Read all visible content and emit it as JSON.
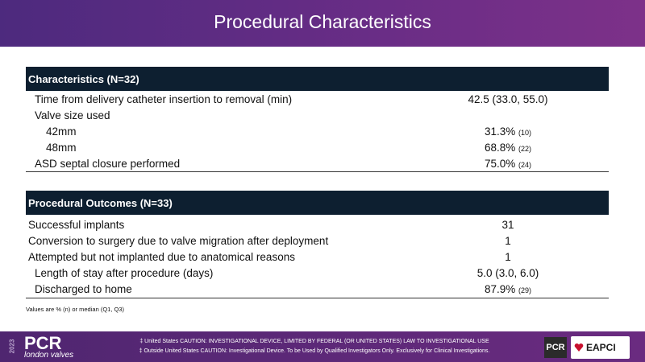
{
  "header": {
    "title": "Procedural Characteristics"
  },
  "tables": [
    {
      "heading": "Characteristics (N=32)",
      "rows": [
        {
          "label": "Time from delivery catheter insertion to removal (min)",
          "value": "42.5 (33.0, 55.0)"
        },
        {
          "label": "Valve size used"
        },
        {
          "label": "42mm",
          "value": "31.3%",
          "count": "(10)"
        },
        {
          "label": "48mm",
          "value": "68.8%",
          "count": "(22)"
        },
        {
          "label": "ASD septal closure performed",
          "value": "75.0%",
          "count": "(24)"
        }
      ]
    },
    {
      "heading": "Procedural Outcomes (N=33)",
      "rows": [
        {
          "label": "Successful implants",
          "value": "31"
        },
        {
          "label": "Conversion to surgery due to valve migration after deployment",
          "value": "1"
        },
        {
          "label": "Attempted but not implanted due to anatomical reasons",
          "value": "1"
        },
        {
          "label": "Length of stay after procedure (days)",
          "value": "5.0 (3.0, 6.0)"
        },
        {
          "label": "Discharged to home",
          "value": "87.9%",
          "count": "(29)"
        }
      ]
    }
  ],
  "footnote": "Values are % (n) or median (Q1, Q3)",
  "footer": {
    "year": "2023",
    "brand": "PCR",
    "subbrand": "london valves",
    "cautions": [
      "‡ United States CAUTION: INVESTIGATIONAL DEVICE, LIMITED BY FEDERAL (OR UNITED STATES) LAW TO INVESTIGATIONAL USE",
      "‡ Outside United States CAUTION: Investigational Device. To be Used by Qualified Investigators Only. Exclusively for Clinical Investigations."
    ],
    "logos": [
      "PCR",
      "EAPCI"
    ]
  }
}
